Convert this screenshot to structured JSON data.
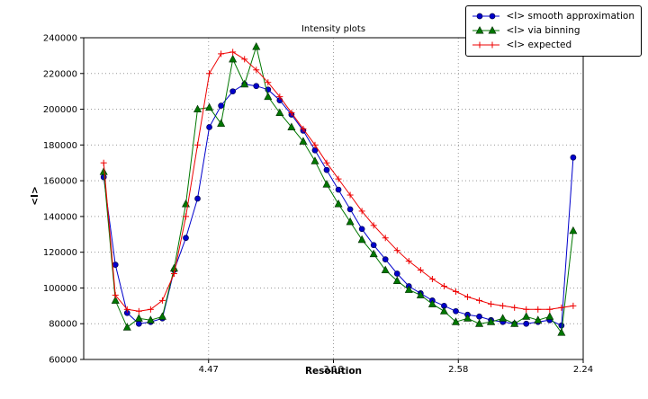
{
  "figure": {
    "title": "Intensity plots",
    "xlabel": "Resolution",
    "ylabel": "<I>"
  },
  "chart_data": {
    "type": "line",
    "title": "Intensity plots",
    "xlabel": "Resolution",
    "ylabel": "<I>",
    "grid": true,
    "legend_position": "upper right outside",
    "xlim": [
      0,
      0.2
    ],
    "ylim": [
      60000,
      240000
    ],
    "x_ticks": [
      {
        "value": 0.05,
        "label": "4.47"
      },
      {
        "value": 0.1,
        "label": "3.16"
      },
      {
        "value": 0.15,
        "label": "2.58"
      },
      {
        "value": 0.2,
        "label": "2.24"
      }
    ],
    "y_ticks": [
      {
        "value": 60000,
        "label": "60000"
      },
      {
        "value": 80000,
        "label": "80000"
      },
      {
        "value": 100000,
        "label": "100000"
      },
      {
        "value": 120000,
        "label": "120000"
      },
      {
        "value": 140000,
        "label": "140000"
      },
      {
        "value": 160000,
        "label": "160000"
      },
      {
        "value": 180000,
        "label": "180000"
      },
      {
        "value": 200000,
        "label": "200000"
      },
      {
        "value": 220000,
        "label": "220000"
      },
      {
        "value": 240000,
        "label": "240000"
      }
    ],
    "x": [
      0.008,
      0.0127,
      0.0174,
      0.0221,
      0.0268,
      0.0315,
      0.0362,
      0.0409,
      0.0456,
      0.0503,
      0.055,
      0.0597,
      0.0644,
      0.0691,
      0.0738,
      0.0785,
      0.0832,
      0.0879,
      0.0926,
      0.0973,
      0.102,
      0.1067,
      0.1114,
      0.1161,
      0.1208,
      0.1255,
      0.1302,
      0.1349,
      0.1396,
      0.1443,
      0.149,
      0.1537,
      0.1584,
      0.1631,
      0.1678,
      0.1725,
      0.1772,
      0.1819,
      0.1866,
      0.1913,
      0.196
    ],
    "series": [
      {
        "name": "<I> smooth approximation",
        "color": "#0000cc",
        "marker": "circle",
        "values": [
          162000,
          113000,
          86000,
          80000,
          81000,
          83000,
          110000,
          128000,
          150000,
          190000,
          202000,
          210000,
          214000,
          213000,
          211000,
          205000,
          197000,
          188000,
          177000,
          166000,
          155000,
          144000,
          133000,
          124000,
          116000,
          108000,
          101000,
          97000,
          93000,
          90000,
          87000,
          85000,
          84000,
          82000,
          81000,
          80000,
          80000,
          81000,
          82000,
          79000,
          173000
        ]
      },
      {
        "name": "<I> via binning",
        "color": "#007700",
        "marker": "triangle",
        "values": [
          165000,
          93000,
          78000,
          83000,
          82000,
          84000,
          111000,
          147000,
          200000,
          201000,
          192000,
          228000,
          214000,
          235000,
          207000,
          198000,
          190000,
          182000,
          171000,
          158000,
          147000,
          137000,
          127000,
          119000,
          110000,
          104000,
          99000,
          96000,
          91000,
          87000,
          81000,
          83000,
          80000,
          81000,
          83000,
          80000,
          84000,
          82000,
          84000,
          75000,
          132000
        ]
      },
      {
        "name": "<I> expected",
        "color": "#ee0000",
        "marker": "plus",
        "values": [
          170000,
          96000,
          88000,
          87000,
          88000,
          93000,
          108000,
          140000,
          180000,
          220000,
          231000,
          232000,
          228000,
          222000,
          215000,
          207000,
          198000,
          189000,
          180000,
          170000,
          161000,
          152000,
          143000,
          135000,
          128000,
          121000,
          115000,
          110000,
          105000,
          101000,
          98000,
          95000,
          93000,
          91000,
          90000,
          89000,
          88000,
          88000,
          88000,
          89000,
          90000
        ]
      }
    ]
  }
}
